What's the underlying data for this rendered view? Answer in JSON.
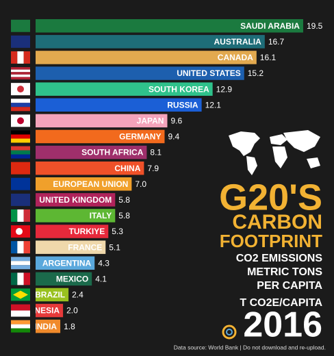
{
  "chart_data": {
    "type": "bar",
    "orientation": "horizontal",
    "title_lines": [
      "G20'S",
      "CARBON",
      "FOOTPRINT"
    ],
    "subtitle_lines": [
      "CO2 EMISSIONS",
      "METRIC TONS",
      "PER CAPITA"
    ],
    "unit": "T CO2E/CAPITA",
    "year": "2016",
    "source": "Data source: World Bank  |  Do not download and re-upload.",
    "categories": [
      "SAUDI ARABIA",
      "AUSTRALIA",
      "CANADA",
      "UNITED STATES",
      "SOUTH KOREA",
      "RUSSIA",
      "JAPAN",
      "GERMANY",
      "SOUTH AFRICA",
      "CHINA",
      "EUROPEAN UNION",
      "UNITED KINGDOM",
      "ITALY",
      "TURKIYE",
      "FRANCE",
      "ARGENTINA",
      "MEXICO",
      "BRAZIL",
      "INDONESIA",
      "INDIA"
    ],
    "values": [
      19.5,
      16.7,
      16.1,
      15.2,
      12.9,
      12.1,
      9.6,
      9.4,
      8.1,
      7.9,
      7.0,
      5.8,
      5.8,
      5.3,
      5.1,
      4.3,
      4.1,
      2.4,
      2.0,
      1.8
    ],
    "value_labels": [
      "19.5",
      "16.7",
      "16.1",
      "15.2",
      "12.9",
      "12.1",
      "9.6",
      "9.4",
      "8.1",
      "7.9",
      "7.0",
      "5.8",
      "5.8",
      "5.3",
      "5.1",
      "4.3",
      "4.1",
      "2.4",
      "2.0",
      "1.8"
    ],
    "colors": [
      "#1b7a3f",
      "#1e6d78",
      "#e2a94f",
      "#1d5fae",
      "#2fc28b",
      "#1b5fd6",
      "#f4a3bb",
      "#f26a1d",
      "#9f2f6b",
      "#ef5129",
      "#f0a02b",
      "#b0235b",
      "#5db733",
      "#e7293b",
      "#efd8ab",
      "#5aa8dc",
      "#1b6a4b",
      "#99c11f",
      "#e63a3a",
      "#f08a2b"
    ],
    "xlim": [
      0,
      20
    ],
    "title_color": "#f2b233"
  }
}
